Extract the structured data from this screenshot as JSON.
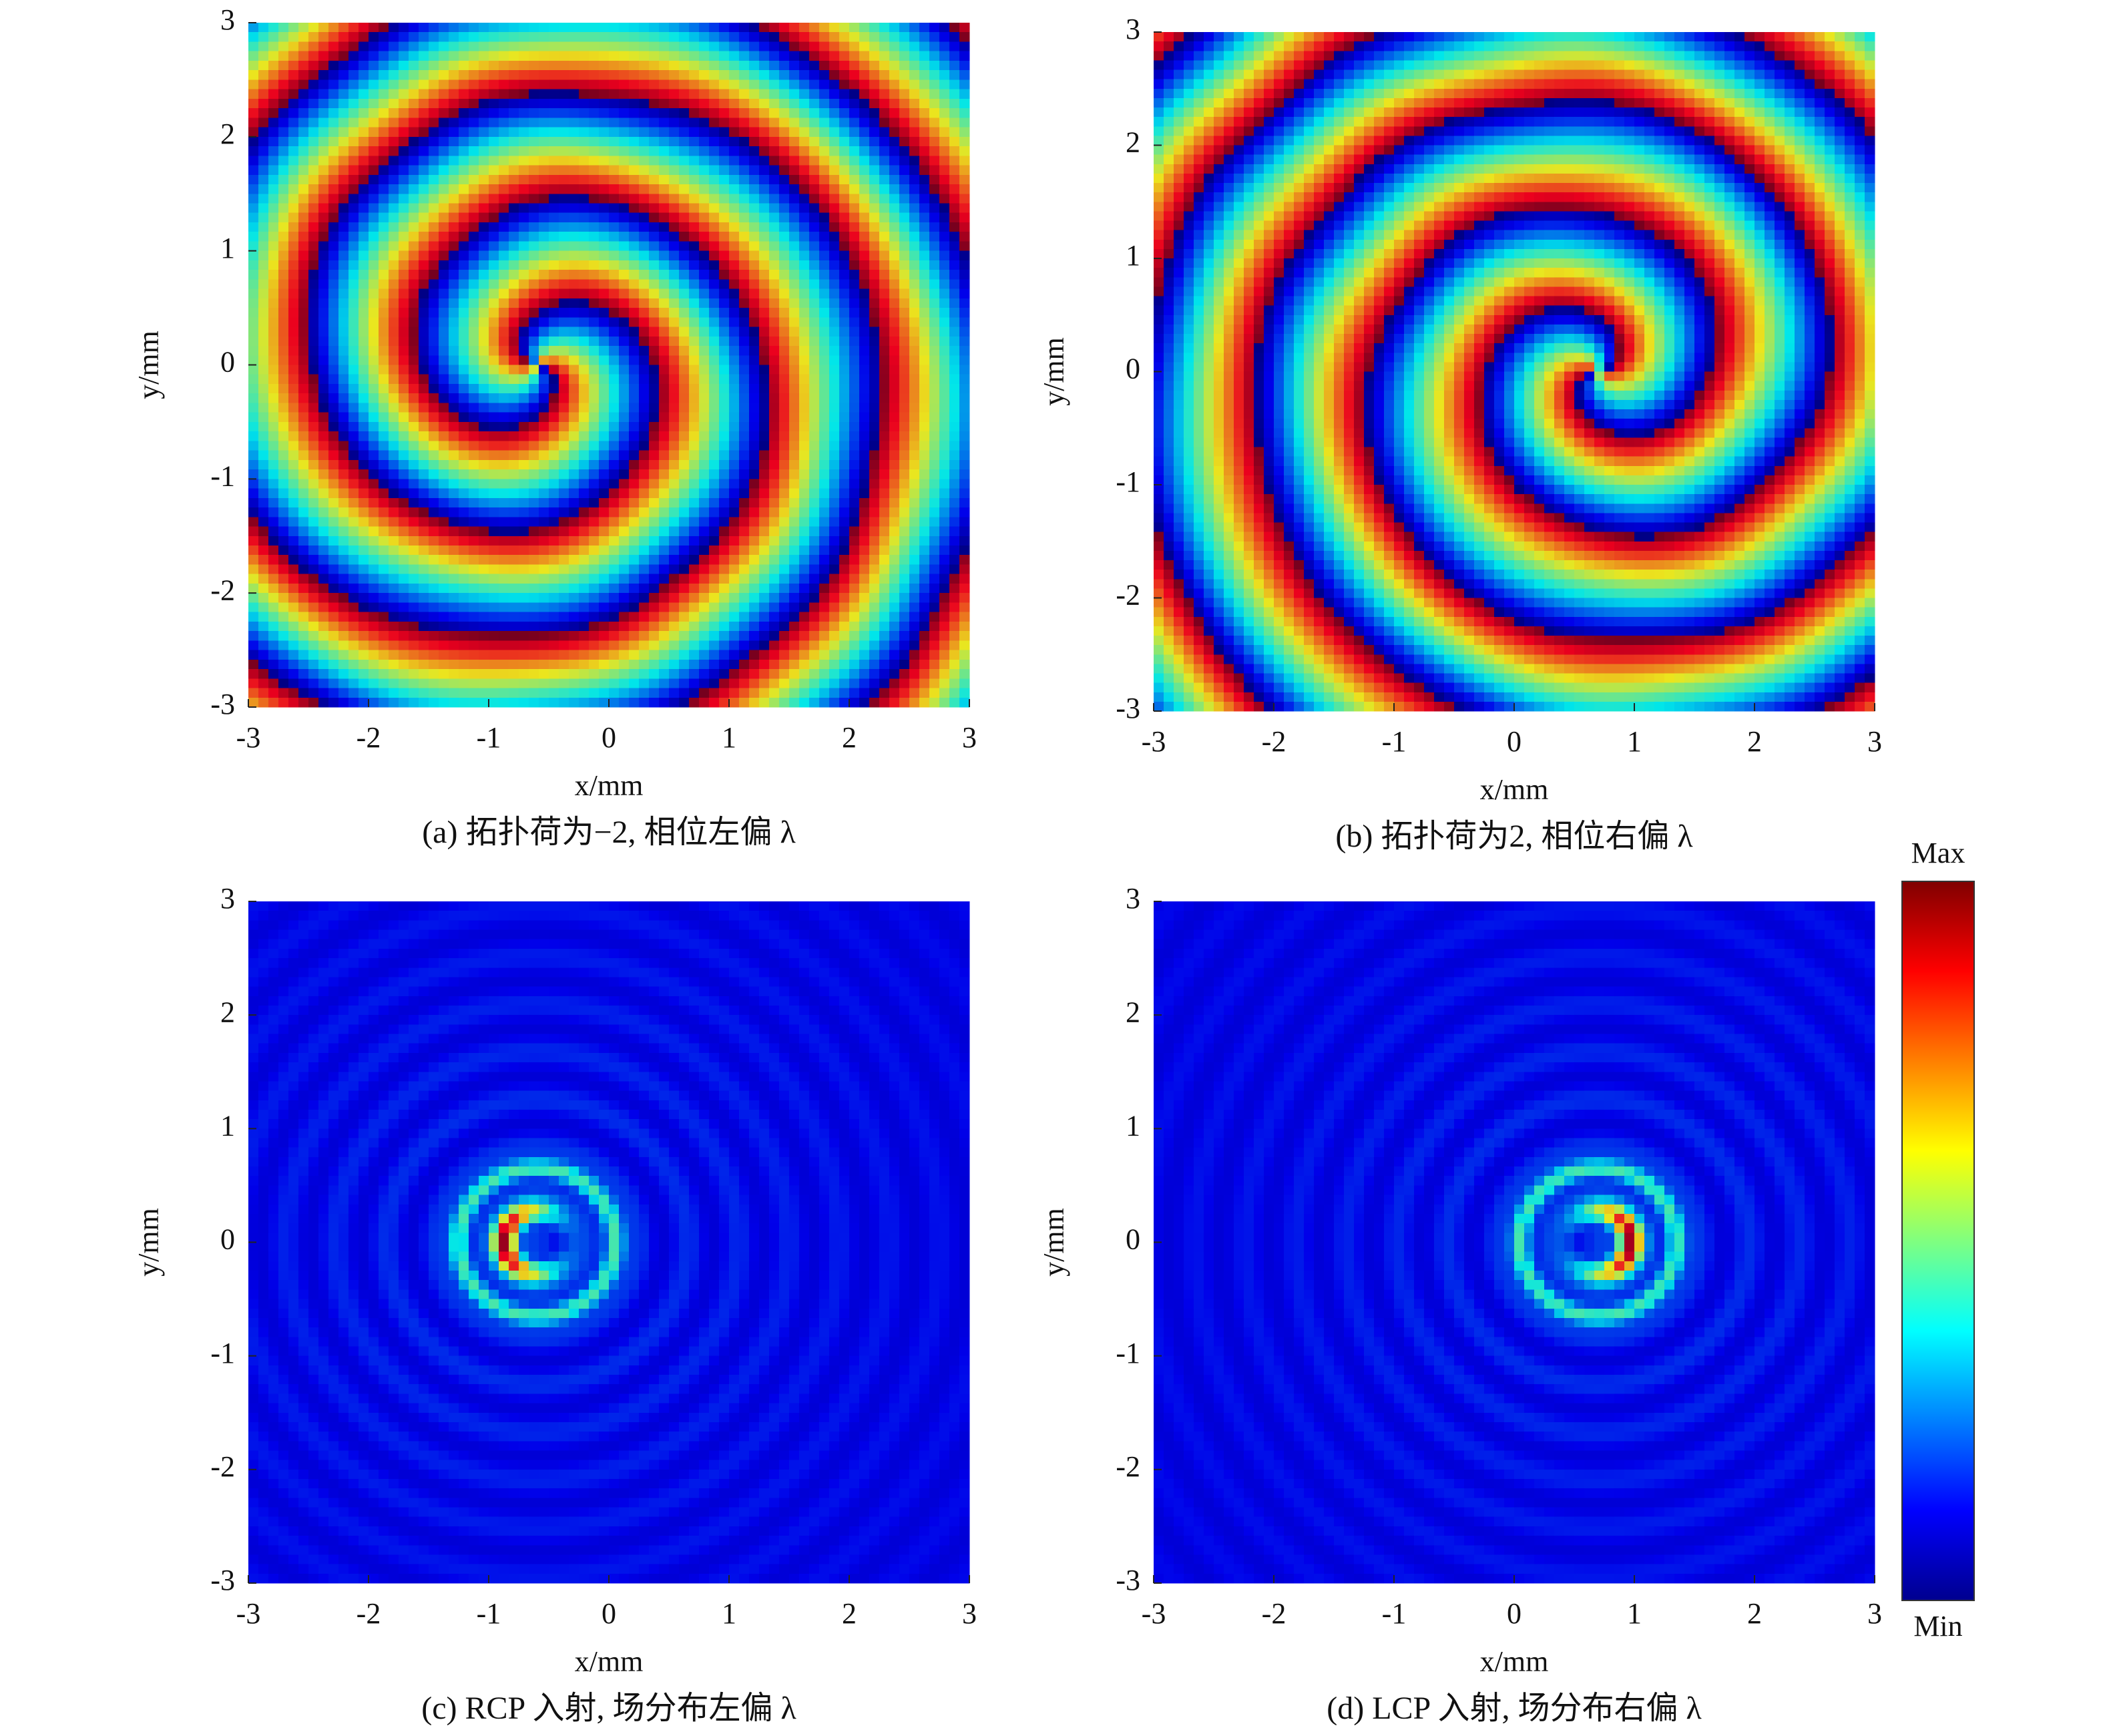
{
  "chart_data": [
    {
      "type": "heatmap",
      "caption": "(a) 拓扑荷为−2, 相位左偏 λ",
      "x_label": "x/mm",
      "y_label": "y/mm",
      "xlim": [
        -3,
        3
      ],
      "ylim": [
        -3,
        3
      ],
      "xticks": [
        -3,
        -2,
        -1,
        0,
        1,
        2,
        3
      ],
      "yticks": [
        -3,
        -2,
        -1,
        0,
        1,
        2,
        3
      ]
    },
    {
      "type": "heatmap",
      "caption": "(b) 拓扑荷为2, 相位右偏 λ",
      "x_label": "x/mm",
      "y_label": "y/mm",
      "xlim": [
        -3,
        3
      ],
      "ylim": [
        -3,
        3
      ],
      "xticks": [
        -3,
        -2,
        -1,
        0,
        1,
        2,
        3
      ],
      "yticks": [
        -3,
        -2,
        -1,
        0,
        1,
        2,
        3
      ]
    },
    {
      "type": "heatmap",
      "caption": "(c) RCP 入射, 场分布左偏 λ",
      "x_label": "x/mm",
      "y_label": "y/mm",
      "xlim": [
        -3,
        3
      ],
      "ylim": [
        -3,
        3
      ],
      "xticks": [
        -3,
        -2,
        -1,
        0,
        1,
        2,
        3
      ],
      "yticks": [
        -3,
        -2,
        -1,
        0,
        1,
        2,
        3
      ]
    },
    {
      "type": "heatmap",
      "caption": "(d) LCP 入射, 场分布右偏 λ",
      "x_label": "x/mm",
      "y_label": "y/mm",
      "xlim": [
        -3,
        3
      ],
      "ylim": [
        -3,
        3
      ],
      "xticks": [
        -3,
        -2,
        -1,
        0,
        1,
        2,
        3
      ],
      "yticks": [
        -3,
        -2,
        -1,
        0,
        1,
        2,
        3
      ],
      "colorbar": {
        "max_label": "Max",
        "min_label": "Min",
        "colormap": "jet"
      }
    }
  ]
}
